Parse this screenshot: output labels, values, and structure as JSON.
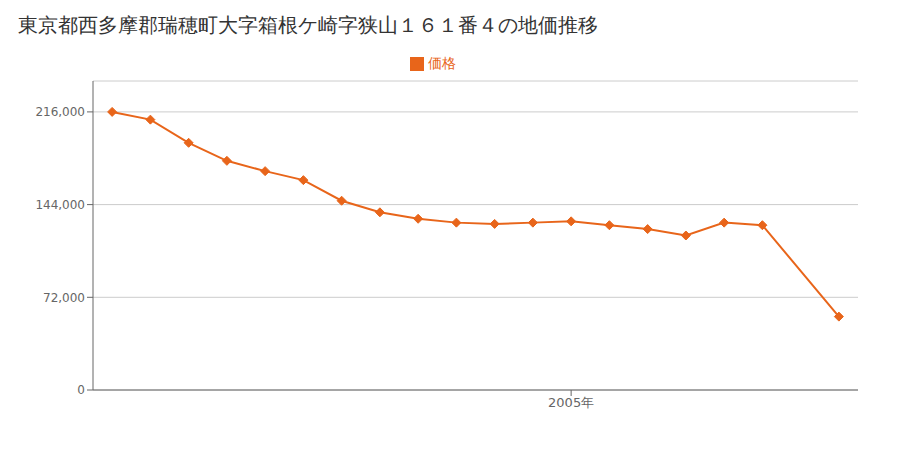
{
  "chart_data": {
    "type": "line",
    "title": "東京都西多摩郡瑞穂町大字箱根ケ崎字狭山１６１番４の地価推移",
    "x": [
      1993,
      1994,
      1995,
      1996,
      1997,
      1998,
      1999,
      2000,
      2001,
      2002,
      2003,
      2004,
      2005,
      2006,
      2007,
      2008,
      2009,
      2010,
      2012
    ],
    "series": [
      {
        "name": "価格",
        "color": "#e8651a",
        "marker": "diamond",
        "values": [
          216000,
          210000,
          192000,
          178000,
          170000,
          163000,
          147000,
          138000,
          133000,
          130000,
          129000,
          130000,
          131000,
          128000,
          125000,
          120000,
          130000,
          128000,
          57000
        ]
      }
    ],
    "xlim": [
      1992.5,
      2012.5
    ],
    "xticks": [
      {
        "value": 2005,
        "label": "2005年"
      }
    ],
    "ylim": [
      0,
      240000
    ],
    "yticks": [
      0,
      {
        "value": 72000,
        "label": "72,000"
      },
      {
        "value": 144000,
        "label": "144,000"
      },
      {
        "value": 216000,
        "label": "216,000"
      }
    ],
    "grid": "y",
    "legend": "top"
  }
}
